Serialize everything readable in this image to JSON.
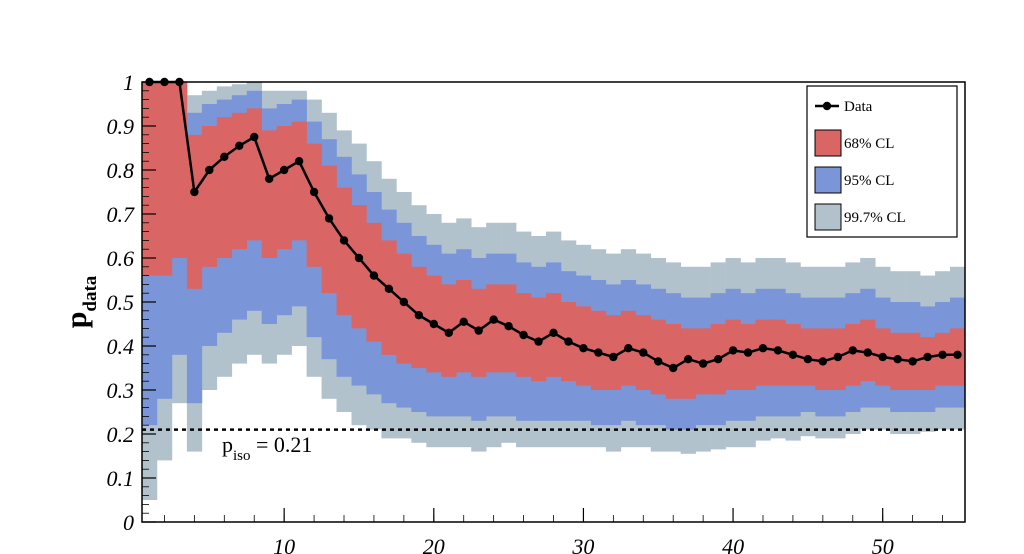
{
  "chart_data": {
    "type": "line",
    "title": "",
    "xlabel": "",
    "ylabel": "p",
    "ylabel_subscript": "data",
    "xlim": [
      1,
      55
    ],
    "ylim": [
      0,
      1
    ],
    "x_ticks": [
      10,
      20,
      30,
      40,
      50
    ],
    "y_ticks": [
      0,
      0.1,
      0.2,
      0.3,
      0.4,
      0.5,
      0.6,
      0.7,
      0.8,
      0.9,
      1
    ],
    "y_tick_labels": [
      "0",
      "0.1",
      "0.2",
      "0.3",
      "0.4",
      "0.5",
      "0.6",
      "0.7",
      "0.8",
      "0.9",
      "1"
    ],
    "x_tick_labels": [
      "10",
      "20",
      "30",
      "40",
      "50"
    ],
    "grid": false,
    "legend_position": "top-right",
    "legend": [
      {
        "label": "Data",
        "kind": "line-marker",
        "color": "#000000"
      },
      {
        "label": "68% CL",
        "kind": "box",
        "color": "#d96565"
      },
      {
        "label": "95% CL",
        "kind": "box",
        "color": "#7b96d8"
      },
      {
        "label": "99.7% CL",
        "kind": "box",
        "color": "#b2c2cc"
      }
    ],
    "reference_line": {
      "y": 0.21,
      "label_main": "p",
      "label_sub": "iso",
      "label_rest": " = 0.21",
      "style": "dotted"
    },
    "x": [
      1,
      2,
      3,
      4,
      5,
      6,
      7,
      8,
      9,
      10,
      11,
      12,
      13,
      14,
      15,
      16,
      17,
      18,
      19,
      20,
      21,
      22,
      23,
      24,
      25,
      26,
      27,
      28,
      29,
      30,
      31,
      32,
      33,
      34,
      35,
      36,
      37,
      38,
      39,
      40,
      41,
      42,
      43,
      44,
      45,
      46,
      47,
      48,
      49,
      50,
      51,
      52,
      53,
      54,
      55
    ],
    "data": [
      1.0,
      1.0,
      1.0,
      0.75,
      0.8,
      0.83,
      0.855,
      0.875,
      0.78,
      0.8,
      0.82,
      0.75,
      0.69,
      0.64,
      0.6,
      0.56,
      0.53,
      0.5,
      0.47,
      0.45,
      0.43,
      0.455,
      0.435,
      0.46,
      0.445,
      0.425,
      0.41,
      0.43,
      0.41,
      0.395,
      0.385,
      0.375,
      0.395,
      0.385,
      0.365,
      0.35,
      0.37,
      0.36,
      0.37,
      0.39,
      0.385,
      0.395,
      0.39,
      0.38,
      0.37,
      0.365,
      0.375,
      0.39,
      0.385,
      0.375,
      0.37,
      0.365,
      0.375,
      0.38,
      0.38
    ],
    "band_997": {
      "lower": [
        0.05,
        0.14,
        0.27,
        0.16,
        0.3,
        0.33,
        0.36,
        0.38,
        0.36,
        0.38,
        0.4,
        0.33,
        0.28,
        0.25,
        0.22,
        0.21,
        0.19,
        0.19,
        0.18,
        0.17,
        0.17,
        0.17,
        0.16,
        0.17,
        0.18,
        0.17,
        0.17,
        0.17,
        0.17,
        0.17,
        0.17,
        0.16,
        0.17,
        0.17,
        0.16,
        0.16,
        0.155,
        0.16,
        0.165,
        0.17,
        0.17,
        0.185,
        0.19,
        0.185,
        0.195,
        0.19,
        0.19,
        0.2,
        0.21,
        0.21,
        0.2,
        0.2,
        0.205,
        0.21,
        0.21
      ],
      "upper": [
        1.0,
        1.0,
        1.0,
        0.97,
        0.98,
        0.99,
        0.995,
        1.0,
        0.98,
        0.98,
        0.98,
        0.96,
        0.93,
        0.89,
        0.86,
        0.82,
        0.78,
        0.75,
        0.72,
        0.7,
        0.68,
        0.69,
        0.67,
        0.68,
        0.68,
        0.66,
        0.65,
        0.66,
        0.64,
        0.63,
        0.62,
        0.61,
        0.62,
        0.61,
        0.6,
        0.59,
        0.58,
        0.58,
        0.59,
        0.6,
        0.59,
        0.6,
        0.6,
        0.59,
        0.58,
        0.58,
        0.58,
        0.59,
        0.6,
        0.58,
        0.57,
        0.57,
        0.56,
        0.57,
        0.58
      ]
    },
    "band_95": {
      "lower": [
        0.22,
        0.28,
        0.38,
        0.27,
        0.4,
        0.43,
        0.46,
        0.48,
        0.45,
        0.47,
        0.49,
        0.42,
        0.37,
        0.33,
        0.31,
        0.29,
        0.27,
        0.26,
        0.25,
        0.24,
        0.24,
        0.24,
        0.23,
        0.24,
        0.24,
        0.23,
        0.23,
        0.23,
        0.23,
        0.23,
        0.22,
        0.22,
        0.23,
        0.22,
        0.22,
        0.21,
        0.21,
        0.22,
        0.22,
        0.23,
        0.23,
        0.24,
        0.24,
        0.24,
        0.25,
        0.24,
        0.24,
        0.25,
        0.26,
        0.26,
        0.25,
        0.25,
        0.25,
        0.26,
        0.26
      ],
      "upper": [
        1.0,
        1.0,
        1.0,
        0.93,
        0.95,
        0.96,
        0.97,
        0.98,
        0.94,
        0.95,
        0.96,
        0.91,
        0.87,
        0.83,
        0.79,
        0.75,
        0.71,
        0.68,
        0.65,
        0.63,
        0.61,
        0.62,
        0.6,
        0.61,
        0.61,
        0.59,
        0.58,
        0.59,
        0.57,
        0.56,
        0.55,
        0.54,
        0.55,
        0.54,
        0.53,
        0.52,
        0.51,
        0.51,
        0.52,
        0.53,
        0.52,
        0.53,
        0.53,
        0.52,
        0.51,
        0.51,
        0.51,
        0.52,
        0.53,
        0.51,
        0.5,
        0.5,
        0.49,
        0.5,
        0.51
      ]
    },
    "band_68": {
      "lower": [
        0.56,
        0.56,
        0.6,
        0.53,
        0.58,
        0.6,
        0.62,
        0.64,
        0.6,
        0.62,
        0.64,
        0.58,
        0.52,
        0.47,
        0.44,
        0.41,
        0.38,
        0.36,
        0.35,
        0.34,
        0.33,
        0.34,
        0.33,
        0.34,
        0.34,
        0.33,
        0.32,
        0.33,
        0.32,
        0.31,
        0.3,
        0.3,
        0.31,
        0.3,
        0.29,
        0.28,
        0.28,
        0.29,
        0.29,
        0.3,
        0.3,
        0.31,
        0.31,
        0.31,
        0.31,
        0.3,
        0.3,
        0.31,
        0.32,
        0.31,
        0.3,
        0.3,
        0.3,
        0.31,
        0.31
      ],
      "upper": [
        1.0,
        1.0,
        1.0,
        0.88,
        0.9,
        0.92,
        0.93,
        0.94,
        0.89,
        0.9,
        0.91,
        0.86,
        0.81,
        0.76,
        0.72,
        0.68,
        0.64,
        0.61,
        0.58,
        0.56,
        0.54,
        0.55,
        0.53,
        0.54,
        0.54,
        0.52,
        0.51,
        0.52,
        0.5,
        0.49,
        0.48,
        0.47,
        0.48,
        0.47,
        0.46,
        0.45,
        0.44,
        0.44,
        0.45,
        0.46,
        0.45,
        0.46,
        0.46,
        0.45,
        0.44,
        0.44,
        0.44,
        0.45,
        0.46,
        0.44,
        0.43,
        0.43,
        0.42,
        0.43,
        0.44
      ]
    }
  }
}
